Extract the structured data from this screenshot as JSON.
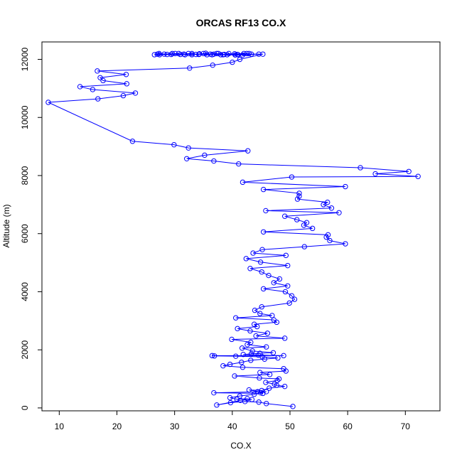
{
  "chart_data": {
    "type": "scatter",
    "title": "ORCAS RF13 CO.X",
    "xlabel": "CO.X",
    "ylabel": "Altitude (m)",
    "xlim": [
      7,
      76
    ],
    "ylim": [
      -100,
      12600
    ],
    "x_ticks": [
      10,
      20,
      30,
      40,
      50,
      60,
      70
    ],
    "y_ticks": [
      0,
      2000,
      4000,
      6000,
      8000,
      10000,
      12000
    ],
    "grid": false,
    "legend": "none",
    "colors": {
      "series": "#0000ff",
      "axes": "#000000"
    },
    "series": [
      {
        "points": [
          [
            50.5,
            50
          ],
          [
            45.9,
            150
          ],
          [
            44.6,
            200
          ],
          [
            42.2,
            220
          ],
          [
            39.7,
            180
          ],
          [
            37.3,
            100
          ],
          [
            41.4,
            260
          ],
          [
            43.4,
            290
          ],
          [
            42.6,
            320
          ],
          [
            40.8,
            300
          ],
          [
            39.6,
            350
          ],
          [
            41.3,
            410
          ],
          [
            43.8,
            470
          ],
          [
            44.9,
            520
          ],
          [
            45.9,
            560
          ],
          [
            36.8,
            520
          ],
          [
            45.3,
            500
          ],
          [
            44.4,
            560
          ],
          [
            42.9,
            620
          ],
          [
            45.1,
            600
          ],
          [
            46.4,
            680
          ],
          [
            49.1,
            740
          ],
          [
            47.7,
            780
          ],
          [
            47.3,
            820
          ],
          [
            45.8,
            880
          ],
          [
            47.8,
            950
          ],
          [
            48.1,
            1000
          ],
          [
            44.7,
            1030
          ],
          [
            40.4,
            1100
          ],
          [
            46.5,
            1150
          ],
          [
            44.8,
            1220
          ],
          [
            49.3,
            1270
          ],
          [
            48.9,
            1350
          ],
          [
            41.8,
            1400
          ],
          [
            38.4,
            1450
          ],
          [
            39.6,
            1500
          ],
          [
            41.6,
            1570
          ],
          [
            43.2,
            1640
          ],
          [
            45.6,
            1680
          ],
          [
            47.9,
            1720
          ],
          [
            45.2,
            1760
          ],
          [
            40.6,
            1780
          ],
          [
            36.9,
            1790
          ],
          [
            36.5,
            1800
          ],
          [
            48.9,
            1800
          ],
          [
            44.5,
            1820
          ],
          [
            41.9,
            1840
          ],
          [
            43.3,
            1860
          ],
          [
            44.8,
            1880
          ],
          [
            47.1,
            1900
          ],
          [
            43.5,
            1960
          ],
          [
            41.7,
            2060
          ],
          [
            45.9,
            2100
          ],
          [
            42.6,
            2180
          ],
          [
            43.2,
            2260
          ],
          [
            39.9,
            2360
          ],
          [
            49.1,
            2400
          ],
          [
            44.1,
            2480
          ],
          [
            46.1,
            2570
          ],
          [
            43.1,
            2650
          ],
          [
            40.9,
            2730
          ],
          [
            44.3,
            2800
          ],
          [
            43.8,
            2880
          ],
          [
            47.7,
            2950
          ],
          [
            47.2,
            3030
          ],
          [
            40.6,
            3100
          ],
          [
            46.9,
            3180
          ],
          [
            44.8,
            3250
          ],
          [
            43.9,
            3360
          ],
          [
            45.1,
            3480
          ],
          [
            49.9,
            3610
          ],
          [
            50.8,
            3740
          ],
          [
            50.3,
            3860
          ],
          [
            49.2,
            4000
          ],
          [
            45.4,
            4100
          ],
          [
            49.6,
            4200
          ],
          [
            47.2,
            4310
          ],
          [
            48.2,
            4440
          ],
          [
            46.3,
            4560
          ],
          [
            45.1,
            4680
          ],
          [
            43.1,
            4800
          ],
          [
            49.6,
            4900
          ],
          [
            44.9,
            5020
          ],
          [
            42.4,
            5140
          ],
          [
            49.3,
            5250
          ],
          [
            43.6,
            5330
          ],
          [
            45.2,
            5450
          ],
          [
            52.5,
            5550
          ],
          [
            59.6,
            5650
          ],
          [
            56.9,
            5760
          ],
          [
            56.3,
            5880
          ],
          [
            56.6,
            5960
          ],
          [
            45.4,
            6060
          ],
          [
            53.9,
            6180
          ],
          [
            52.4,
            6290
          ],
          [
            52.9,
            6380
          ],
          [
            51.2,
            6480
          ],
          [
            49.1,
            6600
          ],
          [
            58.5,
            6720
          ],
          [
            45.8,
            6790
          ],
          [
            57.2,
            6880
          ],
          [
            55.8,
            7000
          ],
          [
            56.5,
            7080
          ],
          [
            51.3,
            7190
          ],
          [
            51.6,
            7290
          ],
          [
            51.6,
            7390
          ],
          [
            45.4,
            7520
          ],
          [
            59.6,
            7620
          ],
          [
            41.8,
            7770
          ],
          [
            50.3,
            7950
          ],
          [
            72.2,
            7970
          ],
          [
            64.8,
            8060
          ],
          [
            70.6,
            8140
          ],
          [
            62.2,
            8270
          ],
          [
            41.1,
            8400
          ],
          [
            36.8,
            8500
          ],
          [
            32.1,
            8580
          ],
          [
            35.2,
            8700
          ],
          [
            42.7,
            8850
          ],
          [
            32.4,
            8950
          ],
          [
            29.9,
            9060
          ],
          [
            22.7,
            9180
          ],
          [
            8.1,
            10520
          ],
          [
            16.7,
            10640
          ],
          [
            21.1,
            10750
          ],
          [
            23.2,
            10840
          ],
          [
            15.8,
            10960
          ],
          [
            13.6,
            11060
          ],
          [
            21.7,
            11160
          ],
          [
            17.6,
            11270
          ],
          [
            17.1,
            11370
          ],
          [
            21.6,
            11480
          ],
          [
            16.6,
            11600
          ],
          [
            32.6,
            11700
          ],
          [
            36.6,
            11800
          ],
          [
            40.0,
            11900
          ],
          [
            41.3,
            12000
          ],
          [
            45.3,
            12180
          ],
          [
            26.5,
            12160
          ],
          [
            27.3,
            12200
          ],
          [
            29.4,
            12170
          ],
          [
            30.7,
            12200
          ],
          [
            31.8,
            12160
          ],
          [
            33.0,
            12200
          ],
          [
            34.2,
            12170
          ],
          [
            35.4,
            12210
          ],
          [
            36.5,
            12160
          ],
          [
            37.6,
            12200
          ],
          [
            38.6,
            12170
          ],
          [
            40.4,
            12190
          ],
          [
            42.5,
            12200
          ],
          [
            43.3,
            12180
          ],
          [
            44.6,
            12180
          ],
          [
            41.8,
            12150
          ],
          [
            40.5,
            12150
          ],
          [
            39.1,
            12160
          ],
          [
            38.0,
            12160
          ],
          [
            36.8,
            12180
          ],
          [
            35.6,
            12160
          ],
          [
            34.3,
            12190
          ],
          [
            33.0,
            12160
          ],
          [
            31.6,
            12180
          ],
          [
            30.1,
            12200
          ],
          [
            28.7,
            12170
          ],
          [
            27.4,
            12160
          ],
          [
            27.0,
            12180
          ],
          [
            28.2,
            12180
          ],
          [
            29.6,
            12200
          ],
          [
            31.0,
            12170
          ],
          [
            32.4,
            12200
          ],
          [
            33.7,
            12170
          ],
          [
            35.0,
            12200
          ],
          [
            36.2,
            12180
          ],
          [
            37.3,
            12200
          ],
          [
            38.4,
            12160
          ],
          [
            39.4,
            12200
          ],
          [
            40.9,
            12170
          ],
          [
            42.0,
            12200
          ],
          [
            42.9,
            12200
          ],
          [
            41.0,
            12160
          ]
        ]
      }
    ]
  }
}
